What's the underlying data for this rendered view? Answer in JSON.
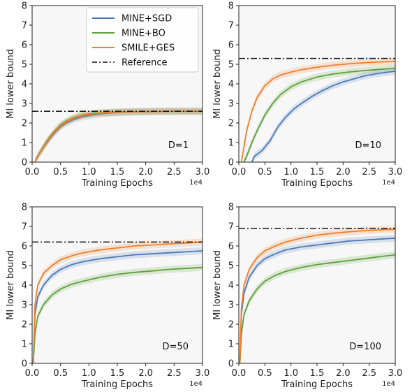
{
  "colors": {
    "mine_sgd": "#4c78b6",
    "mine_bo": "#5da03a",
    "smile_ges": "#ee7f2d",
    "reference": "#111111",
    "plot_bg": "#f7f7f7"
  },
  "chart_data": [
    {
      "type": "line",
      "annotation": "D=1",
      "xlabel": "Training Epochs",
      "ylabel": "MI lower bound",
      "x_scale_label": "1e4",
      "xlim": [
        0,
        3.0
      ],
      "ylim": [
        0,
        8
      ],
      "xticks": [
        "0.0",
        "0.5",
        "1.0",
        "1.5",
        "2.0",
        "2.5",
        "3.0"
      ],
      "yticks": [
        "0",
        "1",
        "2",
        "3",
        "4",
        "5",
        "6",
        "7",
        "8"
      ],
      "grid": false,
      "legend": "top-right",
      "reference": 2.6,
      "series": [
        {
          "name": "MINE+SGD",
          "x": [
            0.05,
            0.1,
            0.2,
            0.3,
            0.4,
            0.5,
            0.6,
            0.75,
            0.9,
            1.1,
            1.3,
            1.6,
            2.0,
            2.5,
            3.0
          ],
          "y": [
            0.0,
            0.3,
            0.75,
            1.15,
            1.5,
            1.8,
            2.0,
            2.2,
            2.33,
            2.43,
            2.5,
            2.55,
            2.58,
            2.6,
            2.6
          ]
        },
        {
          "name": "MINE+BO",
          "x": [
            0.05,
            0.1,
            0.2,
            0.3,
            0.4,
            0.5,
            0.6,
            0.75,
            0.9,
            1.1,
            1.3,
            1.6,
            2.0,
            2.5,
            3.0
          ],
          "y": [
            0.0,
            0.3,
            0.8,
            1.25,
            1.6,
            1.9,
            2.1,
            2.3,
            2.42,
            2.5,
            2.54,
            2.57,
            2.58,
            2.6,
            2.6
          ]
        },
        {
          "name": "SMILE+GES",
          "x": [
            0.05,
            0.1,
            0.2,
            0.3,
            0.4,
            0.5,
            0.6,
            0.75,
            0.9,
            1.1,
            1.3,
            1.6,
            2.0,
            2.5,
            3.0
          ],
          "y": [
            0.0,
            0.3,
            0.75,
            1.2,
            1.55,
            1.85,
            2.05,
            2.28,
            2.4,
            2.48,
            2.53,
            2.56,
            2.58,
            2.6,
            2.6
          ]
        }
      ]
    },
    {
      "type": "line",
      "annotation": "D=10",
      "xlabel": "Training Epochs",
      "ylabel": "MI lower bound",
      "x_scale_label": "1e4",
      "xlim": [
        0,
        3.0
      ],
      "ylim": [
        0,
        8
      ],
      "xticks": [
        "0.0",
        "0.5",
        "1.0",
        "1.5",
        "2.0",
        "2.5",
        "3.0"
      ],
      "yticks": [
        "0",
        "1",
        "2",
        "3",
        "4",
        "5",
        "6",
        "7",
        "8"
      ],
      "grid": false,
      "reference": 5.3,
      "series": [
        {
          "name": "MINE+SGD",
          "x": [
            0.25,
            0.3,
            0.45,
            0.6,
            0.75,
            0.9,
            1.05,
            1.2,
            1.4,
            1.6,
            1.8,
            2.0,
            2.2,
            2.4,
            2.6,
            2.8,
            3.0
          ],
          "y": [
            0.0,
            0.3,
            0.6,
            1.1,
            1.8,
            2.3,
            2.7,
            3.0,
            3.35,
            3.65,
            3.9,
            4.1,
            4.25,
            4.4,
            4.5,
            4.58,
            4.65
          ]
        },
        {
          "name": "MINE+BO",
          "x": [
            0.1,
            0.15,
            0.25,
            0.35,
            0.5,
            0.65,
            0.8,
            1.0,
            1.2,
            1.5,
            1.8,
            2.1,
            2.4,
            2.7,
            3.0
          ],
          "y": [
            0.0,
            0.3,
            1.0,
            1.6,
            2.4,
            3.0,
            3.45,
            3.85,
            4.1,
            4.35,
            4.5,
            4.6,
            4.68,
            4.74,
            4.8
          ]
        },
        {
          "name": "SMILE+GES",
          "x": [
            0.05,
            0.1,
            0.15,
            0.25,
            0.35,
            0.5,
            0.65,
            0.8,
            1.0,
            1.2,
            1.5,
            1.8,
            2.1,
            2.4,
            2.7,
            3.0
          ],
          "y": [
            0.0,
            0.8,
            1.6,
            2.6,
            3.3,
            3.9,
            4.25,
            4.45,
            4.6,
            4.72,
            4.85,
            4.95,
            5.02,
            5.08,
            5.12,
            5.15
          ]
        }
      ]
    },
    {
      "type": "line",
      "annotation": "D=50",
      "xlabel": "Training Epochs",
      "ylabel": "MI lower bound",
      "x_scale_label": "1e4",
      "xlim": [
        0,
        3.0
      ],
      "ylim": [
        0,
        8
      ],
      "xticks": [
        "0.0",
        "0.5",
        "1.0",
        "1.5",
        "2.0",
        "2.5",
        "3.0"
      ],
      "yticks": [
        "0",
        "1",
        "2",
        "3",
        "4",
        "5",
        "6",
        "7",
        "8"
      ],
      "grid": false,
      "reference": 6.2,
      "series": [
        {
          "name": "MINE+SGD",
          "x": [
            0.02,
            0.05,
            0.1,
            0.2,
            0.35,
            0.5,
            0.7,
            0.9,
            1.2,
            1.5,
            1.8,
            2.1,
            2.4,
            2.7,
            3.0
          ],
          "y": [
            0.0,
            2.5,
            3.4,
            4.0,
            4.5,
            4.8,
            5.05,
            5.2,
            5.35,
            5.45,
            5.55,
            5.6,
            5.65,
            5.7,
            5.75
          ]
        },
        {
          "name": "MINE+BO",
          "x": [
            0.02,
            0.05,
            0.1,
            0.2,
            0.35,
            0.5,
            0.7,
            0.9,
            1.2,
            1.5,
            1.8,
            2.1,
            2.4,
            2.7,
            3.0
          ],
          "y": [
            0.0,
            1.5,
            2.4,
            3.0,
            3.5,
            3.8,
            4.05,
            4.2,
            4.4,
            4.55,
            4.65,
            4.72,
            4.8,
            4.85,
            4.9
          ]
        },
        {
          "name": "SMILE+GES",
          "x": [
            0.02,
            0.05,
            0.1,
            0.2,
            0.35,
            0.5,
            0.7,
            0.9,
            1.2,
            1.5,
            1.8,
            2.1,
            2.4,
            2.7,
            3.0
          ],
          "y": [
            0.0,
            3.0,
            4.0,
            4.6,
            5.0,
            5.3,
            5.5,
            5.65,
            5.8,
            5.9,
            6.0,
            6.05,
            6.1,
            6.15,
            6.2
          ]
        }
      ]
    },
    {
      "type": "line",
      "annotation": "D=100",
      "xlabel": "Training Epochs",
      "ylabel": "MI lower bound",
      "x_scale_label": "1e4",
      "xlim": [
        0,
        3.0
      ],
      "ylim": [
        0,
        8
      ],
      "xticks": [
        "0.0",
        "0.5",
        "1.0",
        "1.5",
        "2.0",
        "2.5",
        "3.0"
      ],
      "yticks": [
        "0",
        "1",
        "2",
        "3",
        "4",
        "5",
        "6",
        "7",
        "8"
      ],
      "grid": false,
      "reference": 6.9,
      "series": [
        {
          "name": "MINE+SGD",
          "x": [
            0.02,
            0.05,
            0.1,
            0.2,
            0.35,
            0.5,
            0.7,
            0.9,
            1.2,
            1.5,
            1.8,
            2.1,
            2.4,
            2.7,
            3.0
          ],
          "y": [
            0.0,
            2.5,
            3.6,
            4.4,
            5.0,
            5.35,
            5.6,
            5.8,
            5.95,
            6.05,
            6.15,
            6.25,
            6.3,
            6.35,
            6.4
          ]
        },
        {
          "name": "MINE+BO",
          "x": [
            0.02,
            0.05,
            0.1,
            0.2,
            0.35,
            0.5,
            0.7,
            0.9,
            1.2,
            1.5,
            1.8,
            2.1,
            2.4,
            2.7,
            3.0
          ],
          "y": [
            0.0,
            1.5,
            2.5,
            3.2,
            3.8,
            4.2,
            4.5,
            4.7,
            4.9,
            5.05,
            5.15,
            5.25,
            5.35,
            5.45,
            5.55
          ]
        },
        {
          "name": "SMILE+GES",
          "x": [
            0.02,
            0.05,
            0.1,
            0.2,
            0.35,
            0.5,
            0.7,
            0.9,
            1.2,
            1.5,
            1.8,
            2.1,
            2.4,
            2.7,
            3.0
          ],
          "y": [
            0.0,
            2.8,
            4.0,
            4.8,
            5.4,
            5.75,
            6.0,
            6.2,
            6.4,
            6.55,
            6.65,
            6.72,
            6.78,
            6.82,
            6.85
          ]
        }
      ]
    }
  ],
  "legend": {
    "items": [
      {
        "label": "MINE+SGD",
        "style": "solid",
        "color_key": "mine_sgd"
      },
      {
        "label": "MINE+BO",
        "style": "solid",
        "color_key": "mine_bo"
      },
      {
        "label": "SMILE+GES",
        "style": "solid",
        "color_key": "smile_ges"
      },
      {
        "label": "Reference",
        "style": "dashdot",
        "color_key": "reference"
      }
    ]
  }
}
